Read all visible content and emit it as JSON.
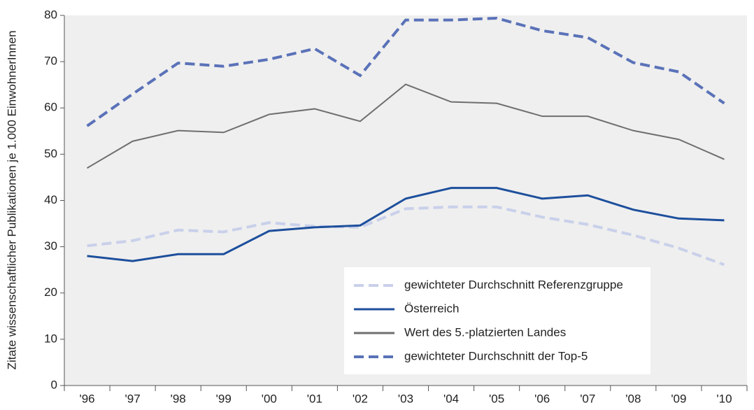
{
  "chart_data": {
    "type": "line",
    "ylabel": "Zitate wissenschaftlicher Publikationen je 1.000 EinwohnerInnen",
    "categories": [
      "'96",
      "'97",
      "'98",
      "'99",
      "'00",
      "'01",
      "'02",
      "'03",
      "'04",
      "'05",
      "'06",
      "'07",
      "'08",
      "'09",
      "'10"
    ],
    "series": [
      {
        "name": "gewichteter Durchschnitt Referenzgruppe",
        "color": "#c9d0ea",
        "dashed": true,
        "values": [
          30.2,
          31.3,
          33.6,
          33.2,
          35.2,
          34.4,
          34.2,
          38.2,
          38.6,
          38.6,
          36.4,
          34.8,
          32.5,
          29.7,
          26.1
        ]
      },
      {
        "name": "Österreich",
        "color": "#1d4f9c",
        "dashed": false,
        "values": [
          28,
          26.9,
          28.4,
          28.4,
          33.4,
          34.2,
          34.6,
          40.4,
          42.7,
          42.7,
          40.4,
          41.1,
          38,
          36.1,
          35.7
        ]
      },
      {
        "name": "Wert des 5.-platzierten Landes",
        "color": "#6f6f6f",
        "dashed": false,
        "values": [
          47,
          52.8,
          55.1,
          54.7,
          58.6,
          59.8,
          57.1,
          65.1,
          61.3,
          61,
          58.2,
          58.2,
          55.1,
          53.2,
          48.9
        ]
      },
      {
        "name": "gewichteter Durchschnitt der Top-5",
        "color": "#5a72b8",
        "dashed": true,
        "values": [
          56.1,
          63,
          69.7,
          69,
          70.5,
          72.8,
          67,
          79,
          79,
          79.4,
          76.7,
          75.2,
          69.8,
          67.8,
          61
        ]
      }
    ],
    "ylim": [
      0,
      80
    ],
    "yticks": [
      0,
      10,
      20,
      30,
      40,
      50,
      60,
      70,
      80
    ],
    "legend": "lower right"
  }
}
